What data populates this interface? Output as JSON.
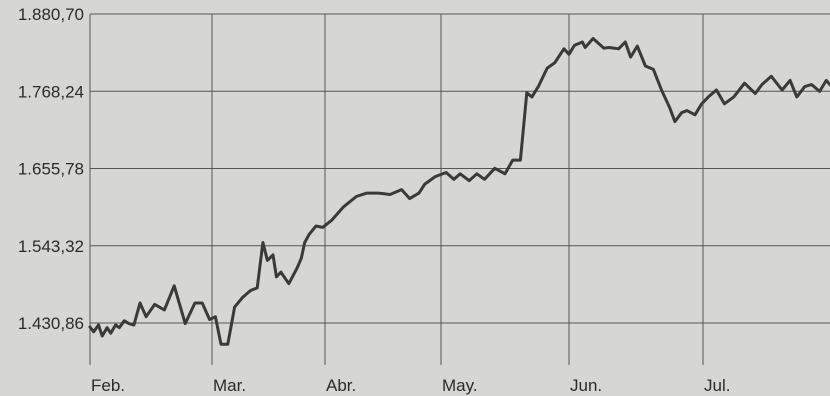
{
  "chart_data": {
    "type": "line",
    "title": "",
    "xlabel": "",
    "ylabel": "",
    "grid": true,
    "ylim": [
      1380,
      1880.7
    ],
    "y_ticks": [
      "1.880,70",
      "1.768,24",
      "1.655,78",
      "1.543,32",
      "1.430,86"
    ],
    "y_tick_values": [
      1880.7,
      1768.24,
      1655.78,
      1543.32,
      1430.86
    ],
    "x_ticks": [
      "Feb.",
      "Mar.",
      "Abr.",
      "May.",
      "Jun.",
      "Jul."
    ],
    "x_range": [
      0,
      6.32
    ],
    "series": [
      {
        "x": [
          0,
          0.03,
          0.07,
          0.1,
          0.14,
          0.17,
          0.21,
          0.24,
          0.28,
          0.32,
          0.36,
          0.41,
          0.46,
          0.53,
          0.61,
          0.69,
          0.78,
          0.86,
          0.92,
          0.98,
          1.03,
          1.08,
          1.14,
          1.2,
          1.27,
          1.34,
          1.4,
          1.45,
          1.49,
          1.54,
          1.57,
          1.61,
          1.68,
          1.75,
          1.79,
          1.82,
          1.86,
          1.92,
          1.98,
          2.06,
          2.16,
          2.27,
          2.36,
          2.46,
          2.56,
          2.66,
          2.73,
          2.81,
          2.86,
          2.95,
          3.04,
          3.1,
          3.15,
          3.22,
          3.28,
          3.34,
          3.42,
          3.5,
          3.56,
          3.62,
          3.67,
          3.71,
          3.76,
          3.83,
          3.89,
          3.96,
          4.0,
          4.04,
          4.1,
          4.12,
          4.18,
          4.26,
          4.3,
          4.37,
          4.42,
          4.46,
          4.51,
          4.57,
          4.63,
          4.69,
          4.75,
          4.79,
          4.84,
          4.88,
          4.94,
          4.99,
          5.04,
          5.1,
          5.16,
          5.23,
          5.31,
          5.39,
          5.44,
          5.51,
          5.59,
          5.65,
          5.7,
          5.76,
          5.81,
          5.87,
          5.92,
          6.0,
          6.07,
          6.13,
          6.19,
          6.25,
          6.32
        ],
        "y": [
          1425,
          1418,
          1428,
          1412,
          1424,
          1416,
          1428,
          1424,
          1434,
          1430,
          1428,
          1460,
          1440,
          1458,
          1450,
          1485,
          1430,
          1460,
          1460,
          1436,
          1440,
          1400,
          1400,
          1454,
          1468,
          1478,
          1482,
          1548,
          1522,
          1530,
          1498,
          1505,
          1488,
          1510,
          1525,
          1548,
          1560,
          1572,
          1570,
          1581,
          1600,
          1615,
          1620,
          1620,
          1618,
          1625,
          1612,
          1620,
          1633,
          1644,
          1650,
          1640,
          1648,
          1638,
          1648,
          1640,
          1656,
          1648,
          1668,
          1668,
          1766,
          1760,
          1775,
          1802,
          1810,
          1830,
          1822,
          1835,
          1840,
          1832,
          1845,
          1831,
          1832,
          1830,
          1840,
          1818,
          1834,
          1805,
          1800,
          1770,
          1745,
          1724,
          1737,
          1740,
          1734,
          1750,
          1760,
          1770,
          1750,
          1760,
          1780,
          1765,
          1778,
          1790,
          1770,
          1784,
          1760,
          1775,
          1778,
          1768,
          1784,
          1766,
          1780,
          1774,
          1760,
          1770,
          1766
        ]
      }
    ]
  }
}
